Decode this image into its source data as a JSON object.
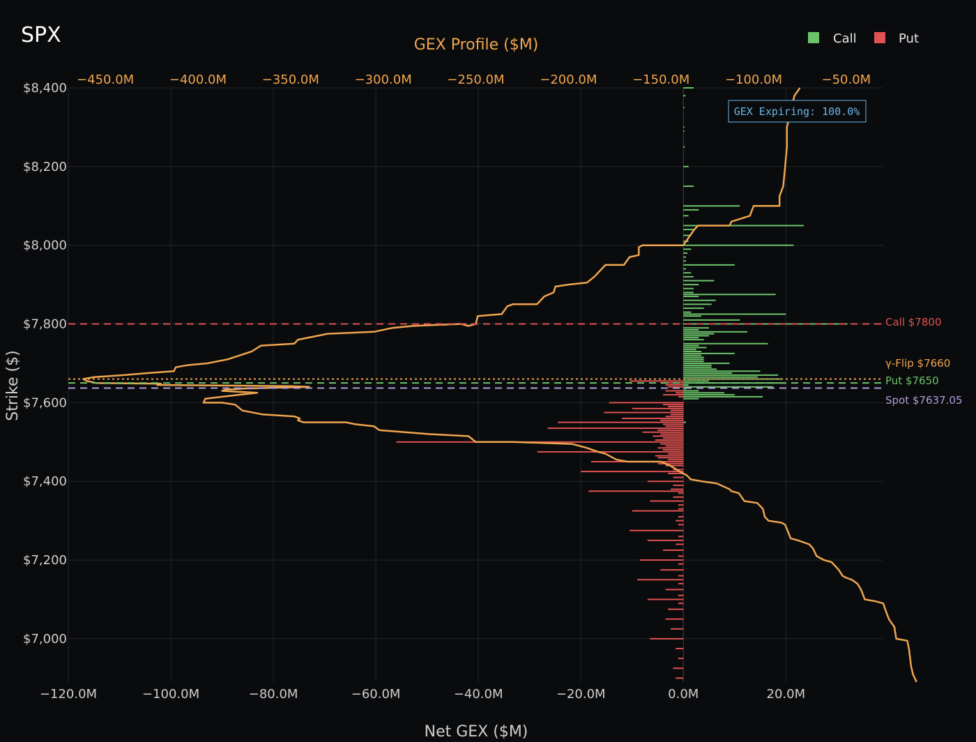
{
  "symbol": "SPX",
  "colors": {
    "background": "#0a0b0d",
    "grid": "#23262b",
    "call": "#6cc46a",
    "put": "#e05252",
    "profile": "#f0a64f",
    "call_level": "#e05252",
    "put_level": "#6cc46a",
    "flip_level": "#f0a64f",
    "spot_level": "#b39ddb",
    "annotation_box": "#6cb8ea"
  },
  "chart_data": {
    "type": "bar",
    "orientation": "horizontal",
    "ylabel": "Strike ($)",
    "xlabel": "Net GEX ($M)",
    "xlim": [
      -120.0,
      39.0
    ],
    "ylim": [
      6890,
      8400
    ],
    "y_ticks": [
      7000,
      7200,
      7400,
      7600,
      7800,
      8000,
      8200,
      8400
    ],
    "y_tick_labels": [
      "$7,000",
      "$7,200",
      "$7,400",
      "$7,600",
      "$7,800",
      "$8,000",
      "$8,200",
      "$8,400"
    ],
    "x_ticks": [
      -120,
      -100,
      -80,
      -60,
      -40,
      -20,
      0,
      20
    ],
    "x_tick_labels": [
      "−120.0M",
      "−100.0M",
      "−80.0M",
      "−60.0M",
      "−40.0M",
      "−20.0M",
      "0.0M",
      "20.0M"
    ],
    "grid": true,
    "legend": {
      "placement": "top-right",
      "entries": [
        "Call",
        "Put"
      ]
    },
    "series": [
      {
        "name": "Call",
        "values": [
          [
            8400,
            2.0
          ],
          [
            8380,
            0.4
          ],
          [
            8350,
            0.2
          ],
          [
            8300,
            0.2
          ],
          [
            8290,
            0.2
          ],
          [
            8250,
            0.3
          ],
          [
            8200,
            1.0
          ],
          [
            8150,
            2.0
          ],
          [
            8100,
            11.0
          ],
          [
            8090,
            3.0
          ],
          [
            8075,
            1.0
          ],
          [
            8050,
            23.5
          ],
          [
            8040,
            2.0
          ],
          [
            8025,
            1.5
          ],
          [
            8010,
            1.0
          ],
          [
            8000,
            21.5
          ],
          [
            7990,
            1.5
          ],
          [
            7980,
            0.8
          ],
          [
            7970,
            0.5
          ],
          [
            7960,
            0.5
          ],
          [
            7950,
            10.0
          ],
          [
            7940,
            0.5
          ],
          [
            7930,
            1.5
          ],
          [
            7920,
            2.0
          ],
          [
            7910,
            6.0
          ],
          [
            7900,
            3.0
          ],
          [
            7890,
            2.0
          ],
          [
            7880,
            2.0
          ],
          [
            7875,
            18.0
          ],
          [
            7870,
            3.0
          ],
          [
            7860,
            6.3
          ],
          [
            7850,
            5.5
          ],
          [
            7840,
            4.0
          ],
          [
            7830,
            1.5
          ],
          [
            7825,
            20.0
          ],
          [
            7820,
            3.5
          ],
          [
            7810,
            11.0
          ],
          [
            7800,
            32.0
          ],
          [
            7790,
            5.0
          ],
          [
            7785,
            3.0
          ],
          [
            7780,
            12.5
          ],
          [
            7775,
            6.0
          ],
          [
            7770,
            5.0
          ],
          [
            7765,
            3.0
          ],
          [
            7760,
            4.0
          ],
          [
            7750,
            16.5
          ],
          [
            7745,
            3.0
          ],
          [
            7740,
            4.5
          ],
          [
            7735,
            2.5
          ],
          [
            7730,
            3.5
          ],
          [
            7725,
            10.0
          ],
          [
            7720,
            3.5
          ],
          [
            7715,
            4.0
          ],
          [
            7710,
            4.0
          ],
          [
            7705,
            4.0
          ],
          [
            7700,
            9.0
          ],
          [
            7695,
            5.5
          ],
          [
            7690,
            5.5
          ],
          [
            7685,
            6.5
          ],
          [
            7680,
            15.0
          ],
          [
            7675,
            9.5
          ],
          [
            7670,
            18.5
          ],
          [
            7665,
            14.5
          ],
          [
            7660,
            19.0
          ],
          [
            7655,
            5.0
          ],
          [
            7650,
            20.0
          ],
          [
            7645,
            1.0
          ],
          [
            7640,
            17.5
          ],
          [
            7635,
            0.5
          ],
          [
            7630,
            3.0
          ],
          [
            7625,
            8.0
          ],
          [
            7620,
            10.0
          ],
          [
            7615,
            15.5
          ],
          [
            7610,
            3.0
          ],
          [
            7550,
            0.5
          ]
        ]
      },
      {
        "name": "Put",
        "values": [
          [
            7655,
            -10.5
          ],
          [
            7650,
            -4.5
          ],
          [
            7645,
            -3.5
          ],
          [
            7640,
            -3.0
          ],
          [
            7630,
            -3.5
          ],
          [
            7625,
            -1.5
          ],
          [
            7620,
            -4.0
          ],
          [
            7615,
            -1.0
          ],
          [
            7600,
            -14.5
          ],
          [
            7595,
            -4.0
          ],
          [
            7590,
            -3.0
          ],
          [
            7585,
            -10.0
          ],
          [
            7580,
            -2.5
          ],
          [
            7575,
            -15.5
          ],
          [
            7570,
            -2.5
          ],
          [
            7565,
            -3.5
          ],
          [
            7560,
            -12.0
          ],
          [
            7555,
            -4.5
          ],
          [
            7550,
            -24.5
          ],
          [
            7545,
            -4.0
          ],
          [
            7540,
            -3.5
          ],
          [
            7535,
            -26.5
          ],
          [
            7530,
            -5.0
          ],
          [
            7525,
            -8.0
          ],
          [
            7520,
            -4.5
          ],
          [
            7515,
            -6.0
          ],
          [
            7510,
            -4.0
          ],
          [
            7505,
            -5.5
          ],
          [
            7500,
            -56.0
          ],
          [
            7495,
            -4.5
          ],
          [
            7490,
            -3.5
          ],
          [
            7485,
            -5.0
          ],
          [
            7480,
            -4.0
          ],
          [
            7475,
            -28.5
          ],
          [
            7470,
            -3.0
          ],
          [
            7465,
            -5.5
          ],
          [
            7460,
            -5.0
          ],
          [
            7455,
            -3.0
          ],
          [
            7450,
            -18.0
          ],
          [
            7445,
            -5.0
          ],
          [
            7440,
            -3.5
          ],
          [
            7430,
            -2.0
          ],
          [
            7425,
            -20.0
          ],
          [
            7420,
            -3.0
          ],
          [
            7410,
            -2.0
          ],
          [
            7400,
            -7.0
          ],
          [
            7390,
            -2.0
          ],
          [
            7380,
            -2.5
          ],
          [
            7375,
            -18.5
          ],
          [
            7370,
            -1.0
          ],
          [
            7360,
            -2.0
          ],
          [
            7350,
            -6.5
          ],
          [
            7340,
            -1.0
          ],
          [
            7330,
            -1.0
          ],
          [
            7325,
            -10.0
          ],
          [
            7310,
            -1.0
          ],
          [
            7300,
            -1.5
          ],
          [
            7290,
            -1.0
          ],
          [
            7275,
            -10.5
          ],
          [
            7260,
            -1.0
          ],
          [
            7250,
            -7.0
          ],
          [
            7240,
            -1.5
          ],
          [
            7225,
            -4.0
          ],
          [
            7210,
            -1.0
          ],
          [
            7200,
            -8.5
          ],
          [
            7190,
            -1.0
          ],
          [
            7175,
            -4.5
          ],
          [
            7160,
            -1.0
          ],
          [
            7150,
            -9.0
          ],
          [
            7140,
            -1.0
          ],
          [
            7125,
            -3.5
          ],
          [
            7110,
            -1.0
          ],
          [
            7100,
            -7.0
          ],
          [
            7090,
            -1.0
          ],
          [
            7075,
            -3.0
          ],
          [
            7050,
            -3.5
          ],
          [
            7025,
            -2.5
          ],
          [
            7000,
            -6.5
          ],
          [
            6975,
            -1.5
          ],
          [
            6950,
            -1.0
          ],
          [
            6925,
            -2.0
          ],
          [
            6900,
            -1.5
          ]
        ]
      }
    ],
    "profile": {
      "title": "GEX Profile ($M)",
      "xlim": [
        -470,
        -30
      ],
      "x_ticks": [
        -450,
        -400,
        -350,
        -300,
        -250,
        -200,
        -150,
        -100,
        -50
      ],
      "x_tick_labels": [
        "−450.0M",
        "−400.0M",
        "−350.0M",
        "−300.0M",
        "−250.0M",
        "−200.0M",
        "−150.0M",
        "−100.0M",
        "−50.0M"
      ],
      "points": [
        [
          -75,
          8400
        ],
        [
          -78,
          8380
        ],
        [
          -81,
          8320
        ],
        [
          -82,
          8300
        ],
        [
          -82,
          8250
        ],
        [
          -83,
          8200
        ],
        [
          -84,
          8150
        ],
        [
          -86,
          8125
        ],
        [
          -86,
          8100
        ],
        [
          -100,
          8100
        ],
        [
          -102,
          8075
        ],
        [
          -112,
          8060
        ],
        [
          -113,
          8050
        ],
        [
          -130,
          8050
        ],
        [
          -132,
          8040
        ],
        [
          -135,
          8020
        ],
        [
          -138,
          8000
        ],
        [
          -160,
          8000
        ],
        [
          -162,
          7995
        ],
        [
          -162,
          7975
        ],
        [
          -167,
          7970
        ],
        [
          -170,
          7950
        ],
        [
          -180,
          7950
        ],
        [
          -182,
          7940
        ],
        [
          -186,
          7920
        ],
        [
          -190,
          7905
        ],
        [
          -200,
          7900
        ],
        [
          -207,
          7895
        ],
        [
          -208,
          7880
        ],
        [
          -213,
          7870
        ],
        [
          -217,
          7850
        ],
        [
          -230,
          7850
        ],
        [
          -233,
          7845
        ],
        [
          -236,
          7825
        ],
        [
          -249,
          7820
        ],
        [
          -250,
          7800
        ],
        [
          -254,
          7795
        ],
        [
          -258,
          7800
        ],
        [
          -284,
          7795
        ],
        [
          -295,
          7790
        ],
        [
          -305,
          7780
        ],
        [
          -330,
          7775
        ],
        [
          -346,
          7760
        ],
        [
          -348,
          7750
        ],
        [
          -366,
          7745
        ],
        [
          -371,
          7730
        ],
        [
          -384,
          7710
        ],
        [
          -395,
          7700
        ],
        [
          -406,
          7695
        ],
        [
          -412,
          7690
        ],
        [
          -413,
          7680
        ],
        [
          -428,
          7675
        ],
        [
          -440,
          7670
        ],
        [
          -456,
          7665
        ],
        [
          -462,
          7660
        ],
        [
          -460,
          7655
        ],
        [
          -455,
          7650
        ],
        [
          -420,
          7648
        ],
        [
          -422,
          7645
        ],
        [
          -350,
          7642
        ],
        [
          -340,
          7640
        ],
        [
          -375,
          7636
        ],
        [
          -385,
          7633
        ],
        [
          -387,
          7630
        ],
        [
          -368,
          7625
        ],
        [
          -378,
          7620
        ],
        [
          -396,
          7610
        ],
        [
          -397,
          7600
        ],
        [
          -387,
          7600
        ],
        [
          -380,
          7595
        ],
        [
          -376,
          7580
        ],
        [
          -365,
          7570
        ],
        [
          -348,
          7565
        ],
        [
          -345,
          7560
        ],
        [
          -346,
          7555
        ],
        [
          -343,
          7550
        ],
        [
          -320,
          7550
        ],
        [
          -315,
          7545
        ],
        [
          -305,
          7540
        ],
        [
          -302,
          7530
        ],
        [
          -275,
          7520
        ],
        [
          -254,
          7515
        ],
        [
          -250,
          7500
        ],
        [
          -230,
          7500
        ],
        [
          -198,
          7495
        ],
        [
          -190,
          7485
        ],
        [
          -184,
          7475
        ],
        [
          -180,
          7470
        ],
        [
          -174,
          7455
        ],
        [
          -168,
          7450
        ],
        [
          -150,
          7450
        ],
        [
          -145,
          7440
        ],
        [
          -140,
          7425
        ],
        [
          -136,
          7415
        ],
        [
          -134,
          7405
        ],
        [
          -128,
          7400
        ],
        [
          -120,
          7395
        ],
        [
          -113,
          7380
        ],
        [
          -112,
          7375
        ],
        [
          -108,
          7370
        ],
        [
          -105,
          7350
        ],
        [
          -98,
          7345
        ],
        [
          -95,
          7330
        ],
        [
          -94,
          7310
        ],
        [
          -92,
          7300
        ],
        [
          -85,
          7295
        ],
        [
          -83,
          7290
        ],
        [
          -80,
          7255
        ],
        [
          -76,
          7250
        ],
        [
          -70,
          7240
        ],
        [
          -68,
          7230
        ],
        [
          -66,
          7210
        ],
        [
          -62,
          7200
        ],
        [
          -58,
          7195
        ],
        [
          -54,
          7175
        ],
        [
          -52,
          7160
        ],
        [
          -50,
          7155
        ],
        [
          -47,
          7150
        ],
        [
          -44,
          7140
        ],
        [
          -42,
          7125
        ],
        [
          -40,
          7100
        ],
        [
          -34,
          7095
        ],
        [
          -30,
          7090
        ],
        [
          -29,
          7075
        ],
        [
          -27,
          7050
        ],
        [
          -24,
          7030
        ],
        [
          -23,
          7000
        ],
        [
          -17,
          6995
        ],
        [
          -16,
          6970
        ],
        [
          -15,
          6930
        ],
        [
          -14,
          6910
        ],
        [
          -13,
          6900
        ],
        [
          -12,
          6890
        ]
      ]
    },
    "levels": [
      {
        "name": "call",
        "strike": 7800,
        "label": "Call $7800",
        "style": "dashed"
      },
      {
        "name": "flip",
        "strike": 7660,
        "label": "γ-Flip $7660",
        "style": "dotted"
      },
      {
        "name": "put",
        "strike": 7650,
        "label": "Put $7650",
        "style": "dashed"
      },
      {
        "name": "spot",
        "strike": 7637.05,
        "label": "Spot $7637.05",
        "style": "dashed"
      }
    ],
    "annotation": "GEX Expiring: 100.0%"
  }
}
